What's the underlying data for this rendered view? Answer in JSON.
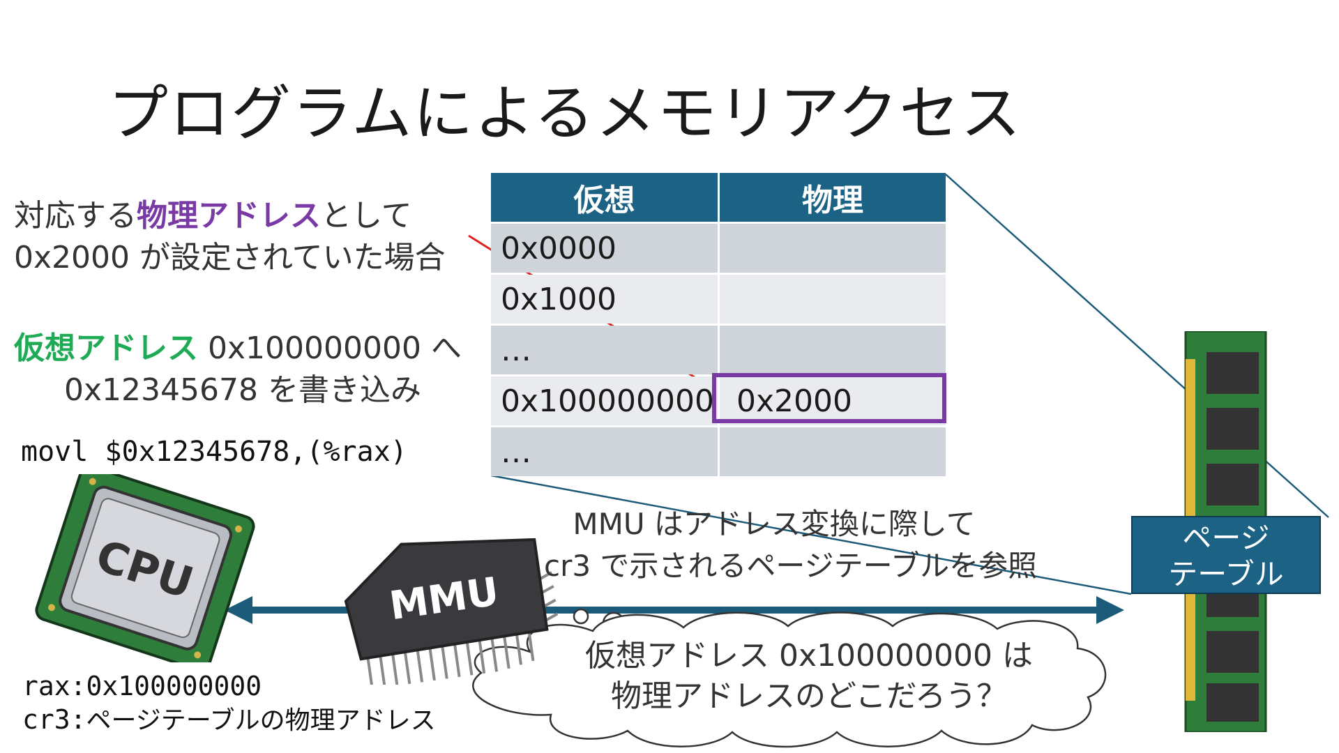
{
  "title": "プログラムによるメモリアクセス",
  "note_physical": {
    "line1_prefix": "対応する",
    "line1_highlight": "物理アドレス",
    "line1_suffix": "として",
    "line2": "0x2000 が設定されていた場合"
  },
  "note_virtual": {
    "line1_highlight": "仮想アドレス",
    "line1_suffix": " 0x100000000 へ",
    "line2": "0x12345678 を書き込み"
  },
  "instruction": "movl $0x12345678,(%rax)",
  "page_table": {
    "headers": [
      "仮想",
      "物理"
    ],
    "rows": [
      {
        "virtual": "0x0000",
        "physical": ""
      },
      {
        "virtual": "0x1000",
        "physical": ""
      },
      {
        "virtual": "…",
        "physical": ""
      },
      {
        "virtual": "0x100000000",
        "physical": "0x2000"
      },
      {
        "virtual": "…",
        "physical": ""
      }
    ]
  },
  "cpu_label": "CPU",
  "mmu_label": "MMU",
  "page_table_label": {
    "line1": "ページ",
    "line2": "テーブル"
  },
  "mmu_note": {
    "line1": "MMU はアドレス変換に際して",
    "line2": "cr3 で示されるページテーブルを参照"
  },
  "thought": {
    "line1": "仮想アドレス 0x100000000 は",
    "line2": "物理アドレスのどこだろう？"
  },
  "registers": {
    "rax_label": "rax:",
    "rax_value": "0x100000000",
    "cr3_label": "cr3:",
    "cr3_value": "ページテーブルの物理アドレス"
  },
  "colors": {
    "table_header": "#1c6285",
    "highlight": "#7a3aa6",
    "virtual": "#1faa55",
    "arrow": "#1c5a7a",
    "pointer": "#e02020"
  }
}
